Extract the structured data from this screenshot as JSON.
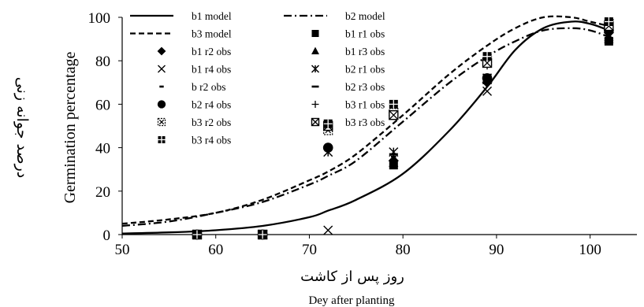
{
  "chart_data": {
    "type": "scatter",
    "x_axis": {
      "label": "Dey after planting",
      "label_fa": "روز پس از کاشت",
      "range": [
        50,
        105
      ],
      "ticks": [
        50,
        60,
        70,
        80,
        90,
        100
      ]
    },
    "y_axis": {
      "label": "Germination percentage",
      "label_fa": "درصد جوانه زنی",
      "range": [
        0,
        100
      ],
      "ticks": [
        0,
        20,
        40,
        60,
        80,
        100
      ]
    },
    "grid": false,
    "legend_placement": "top-left",
    "series": [
      {
        "name": "b1  model",
        "kind": "line",
        "dash": "solid",
        "x": [
          50,
          55,
          60,
          65,
          70,
          72,
          75,
          80,
          85,
          89,
          92,
          95,
          98,
          100,
          102
        ],
        "y": [
          0.5,
          1,
          2,
          4,
          8,
          11,
          16,
          28,
          48,
          68,
          85,
          95,
          98,
          97,
          94
        ]
      },
      {
        "name": "b2 model",
        "kind": "line",
        "dash": "dashdot",
        "x": [
          50,
          55,
          60,
          65,
          70,
          72,
          75,
          80,
          85,
          89,
          92,
          95,
          98,
          100,
          102
        ],
        "y": [
          4,
          6,
          10,
          15,
          23,
          27,
          34,
          52,
          70,
          82,
          89,
          94,
          95,
          94,
          91
        ]
      },
      {
        "name": "b3 model",
        "kind": "line",
        "dash": "dashed",
        "x": [
          50,
          55,
          60,
          65,
          70,
          72,
          75,
          80,
          85,
          89,
          92,
          95,
          98,
          100,
          102
        ],
        "y": [
          5,
          7,
          10,
          16,
          25,
          29,
          37,
          55,
          74,
          87,
          95,
          100,
          100,
          98,
          96
        ]
      },
      {
        "name": "b1 r1 obs",
        "kind": "points",
        "marker": "square",
        "x": [
          58,
          65,
          79,
          89,
          102
        ],
        "y": [
          0,
          0,
          32,
          72,
          89
        ]
      },
      {
        "name": "b1 r2 obs",
        "kind": "points",
        "marker": "diamond",
        "x": [
          58,
          65,
          79,
          89,
          102
        ],
        "y": [
          0,
          0,
          34,
          70,
          93
        ]
      },
      {
        "name": "b1 r3 obs",
        "kind": "points",
        "marker": "triangle",
        "x": [
          58,
          65,
          79,
          89,
          102
        ],
        "y": [
          0,
          0,
          33,
          71,
          90
        ]
      },
      {
        "name": "b1 r4 obs",
        "kind": "points",
        "marker": "x",
        "x": [
          58,
          65,
          72,
          89,
          102
        ],
        "y": [
          0,
          0,
          2,
          66,
          92
        ]
      },
      {
        "name": "b2 r1 obs",
        "kind": "points",
        "marker": "star",
        "x": [
          58,
          65,
          72,
          79,
          89,
          102
        ],
        "y": [
          0,
          0,
          38,
          38,
          72,
          91
        ]
      },
      {
        "name": "b r2 obs",
        "kind": "points",
        "marker": "short-dash",
        "x": [
          58,
          65,
          79,
          89,
          102
        ],
        "y": [
          0,
          0,
          36,
          71,
          92
        ]
      },
      {
        "name": "b2 r3 obs",
        "kind": "points",
        "marker": "long-dash",
        "x": [
          58,
          65,
          79,
          89,
          102
        ],
        "y": [
          0,
          0,
          37,
          72,
          93
        ]
      },
      {
        "name": "b2 r4 obs",
        "kind": "points",
        "marker": "circle",
        "x": [
          58,
          65,
          72,
          89,
          102
        ],
        "y": [
          0,
          0,
          40,
          72,
          94
        ]
      },
      {
        "name": "b3 r1 obs",
        "kind": "points",
        "marker": "plus",
        "x": [
          58,
          65,
          72,
          79,
          89,
          102
        ],
        "y": [
          0,
          0,
          50,
          57,
          78,
          96
        ]
      },
      {
        "name": "b3 r2 obs",
        "kind": "points",
        "marker": "boxdot",
        "x": [
          58,
          65,
          72,
          79,
          89,
          102
        ],
        "y": [
          0,
          0,
          48,
          56,
          80,
          97
        ]
      },
      {
        "name": "b3 r3 obs",
        "kind": "points",
        "marker": "boxx",
        "x": [
          58,
          65,
          72,
          79,
          89,
          102
        ],
        "y": [
          0,
          0,
          50,
          55,
          79,
          96
        ]
      },
      {
        "name": "b3 r4 obs",
        "kind": "points",
        "marker": "grid",
        "x": [
          58,
          65,
          72,
          79,
          89,
          102
        ],
        "y": [
          0,
          0,
          51,
          60,
          82,
          98
        ]
      }
    ]
  }
}
